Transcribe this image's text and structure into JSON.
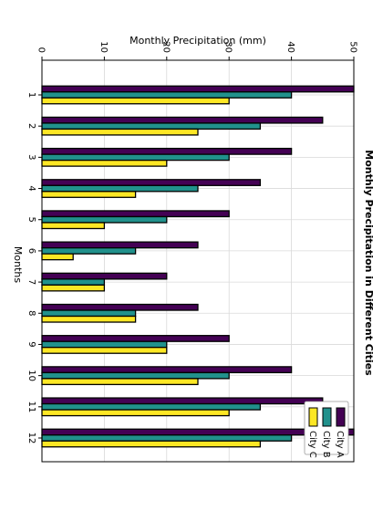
{
  "chart_data": {
    "type": "bar",
    "orientation": "rotated-90",
    "title": "Monthly Precipitation in Different Cities",
    "xlabel": "Months",
    "ylabel": "Monthly Precipitation (mm)",
    "categories": [
      "1",
      "2",
      "3",
      "4",
      "5",
      "6",
      "7",
      "8",
      "9",
      "10",
      "11",
      "12"
    ],
    "series": [
      {
        "name": "City A",
        "color": "#440154",
        "values": [
          50,
          45,
          40,
          35,
          30,
          25,
          20,
          25,
          30,
          40,
          45,
          50
        ]
      },
      {
        "name": "City B",
        "color": "#21918c",
        "values": [
          40,
          35,
          30,
          25,
          20,
          15,
          10,
          15,
          20,
          30,
          35,
          40
        ]
      },
      {
        "name": "City C",
        "color": "#fde725",
        "values": [
          30,
          25,
          20,
          15,
          10,
          5,
          10,
          15,
          20,
          25,
          30,
          35
        ]
      }
    ],
    "ylim": [
      0,
      50
    ],
    "yticks": [
      "0",
      "10",
      "20",
      "30",
      "40",
      "50"
    ],
    "grid": true,
    "legend_position": "bottom-right"
  }
}
